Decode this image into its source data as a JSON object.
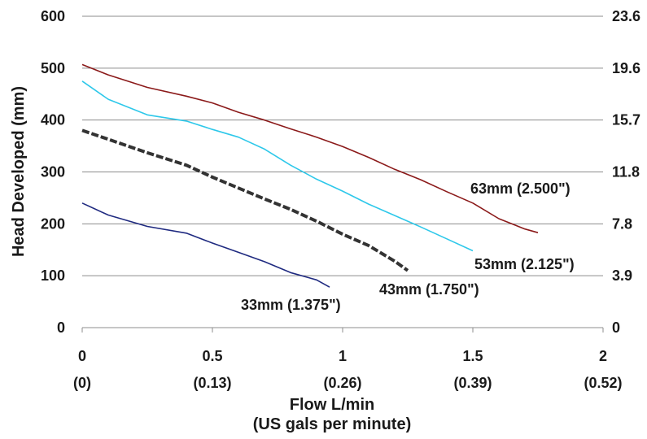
{
  "chart_data": {
    "type": "line",
    "title": "",
    "ylabel": "Head Developed (mm)",
    "xlabel": "Flow L/min",
    "xlabel_secondary": "(US gals per minute)",
    "xlim": [
      0,
      2
    ],
    "ylim": [
      0,
      600
    ],
    "x_ticks": [
      "0",
      "0.5",
      "1",
      "1.5",
      "2"
    ],
    "x_ticks_secondary": [
      "(0)",
      "(0.13)",
      "(0.26)",
      "(0.39)",
      "(0.52)"
    ],
    "y_ticks_left": [
      "0",
      "100",
      "200",
      "300",
      "400",
      "500",
      "600"
    ],
    "y_ticks_right": [
      "0",
      "3.9",
      "7.8",
      "11.8",
      "15.7",
      "19.6",
      "23.6"
    ],
    "grid": "horizontal",
    "legend": "none",
    "series": [
      {
        "name": "63mm (2.500\")",
        "color": "#8b1a1a",
        "style": "solid",
        "x": [
          0,
          0.1,
          0.25,
          0.4,
          0.5,
          0.6,
          0.7,
          0.8,
          0.9,
          1.0,
          1.1,
          1.2,
          1.3,
          1.4,
          1.5,
          1.6,
          1.7,
          1.75
        ],
        "y": [
          507,
          487,
          463,
          446,
          433,
          415,
          400,
          383,
          367,
          349,
          328,
          305,
          285,
          262,
          240,
          210,
          190,
          183
        ]
      },
      {
        "name": "53mm (2.125\")",
        "color": "#2ec8ea",
        "style": "solid",
        "x": [
          0,
          0.1,
          0.25,
          0.4,
          0.5,
          0.6,
          0.7,
          0.8,
          0.9,
          1.0,
          1.1,
          1.2,
          1.3,
          1.4,
          1.5
        ],
        "y": [
          475,
          440,
          410,
          398,
          382,
          367,
          344,
          313,
          286,
          263,
          238,
          216,
          194,
          171,
          148
        ]
      },
      {
        "name": "43mm (1.750\")",
        "color": "#333333",
        "style": "dashed",
        "x": [
          0,
          0.1,
          0.25,
          0.4,
          0.5,
          0.6,
          0.7,
          0.8,
          0.9,
          1.0,
          1.1,
          1.2,
          1.25
        ],
        "y": [
          380,
          363,
          337,
          313,
          290,
          269,
          248,
          228,
          205,
          180,
          158,
          128,
          110
        ]
      },
      {
        "name": "33mm (1.375\")",
        "color": "#1f2a80",
        "style": "solid",
        "x": [
          0,
          0.1,
          0.25,
          0.4,
          0.5,
          0.6,
          0.7,
          0.8,
          0.9,
          0.95
        ],
        "y": [
          240,
          217,
          195,
          182,
          163,
          145,
          127,
          106,
          92,
          78
        ]
      }
    ]
  }
}
